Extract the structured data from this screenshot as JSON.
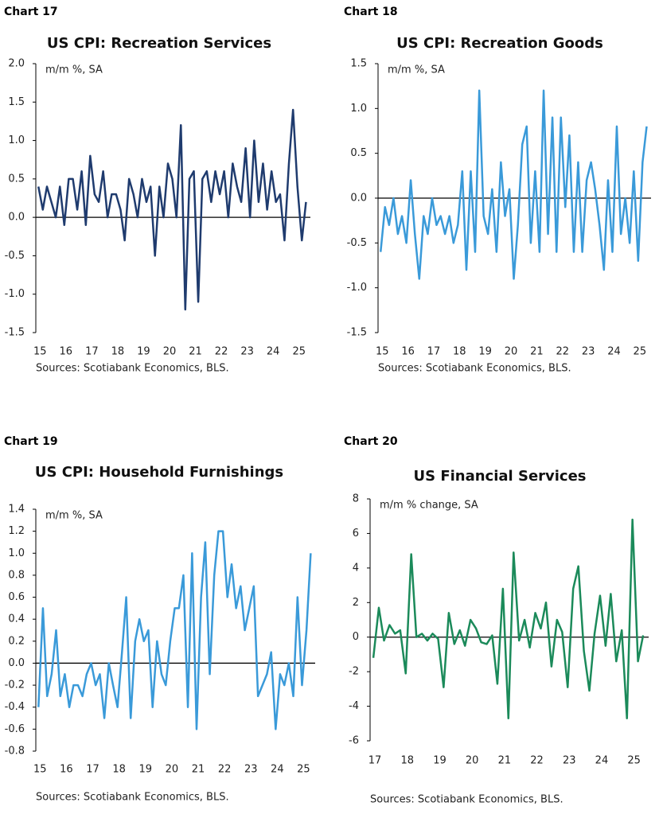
{
  "chart_data": [
    {
      "type": "line",
      "label": "Chart 17",
      "title": "US CPI: Recreation Services",
      "subtitle": "m/m %, SA",
      "source": "Sources: Scotiabank Economics, BLS.",
      "x": [
        15,
        15.17,
        15.33,
        15.5,
        15.67,
        15.83,
        16,
        16.17,
        16.33,
        16.5,
        16.67,
        16.83,
        17,
        17.17,
        17.33,
        17.5,
        17.67,
        17.83,
        18,
        18.17,
        18.33,
        18.5,
        18.67,
        18.83,
        19,
        19.17,
        19.33,
        19.5,
        19.67,
        19.83,
        20,
        20.17,
        20.33,
        20.5,
        20.67,
        20.83,
        21,
        21.17,
        21.33,
        21.5,
        21.67,
        21.83,
        22,
        22.17,
        22.33,
        22.5,
        22.67,
        22.83,
        23,
        23.17,
        23.33,
        23.5,
        23.67,
        23.83,
        24,
        24.17,
        24.33,
        24.5,
        24.67,
        24.83,
        25,
        25.17,
        25.33
      ],
      "values": [
        0.4,
        0.1,
        0.4,
        0.2,
        0.0,
        0.4,
        -0.1,
        0.5,
        0.5,
        0.1,
        0.6,
        -0.1,
        0.8,
        0.3,
        0.2,
        0.6,
        0.0,
        0.3,
        0.3,
        0.1,
        -0.3,
        0.5,
        0.3,
        0.0,
        0.5,
        0.2,
        0.4,
        -0.5,
        0.4,
        0.0,
        0.7,
        0.5,
        0.0,
        1.2,
        -1.2,
        0.5,
        0.6,
        -1.1,
        0.5,
        0.6,
        0.2,
        0.6,
        0.3,
        0.6,
        0.0,
        0.7,
        0.4,
        0.2,
        0.9,
        0.0,
        1.0,
        0.2,
        0.7,
        0.1,
        0.6,
        0.2,
        0.3,
        -0.3,
        0.7,
        1.4,
        0.4,
        -0.3,
        0.2
      ],
      "color": "#1f3b6e",
      "xlim": [
        14.9,
        25.5
      ],
      "xticks": [
        15,
        16,
        17,
        18,
        19,
        20,
        21,
        22,
        23,
        24,
        25
      ],
      "ylim": [
        -1.5,
        2.0
      ],
      "yticks": [
        {
          "value": 2.0,
          "label": "2.0"
        },
        1.5,
        {
          "value": 1.0,
          "label": "1.0"
        },
        0.5,
        {
          "value": 0.0,
          "label": "0.0"
        },
        -0.5,
        {
          "value": -1.0,
          "label": "-1.0"
        },
        -1.5
      ]
    },
    {
      "type": "line",
      "label": "Chart 18",
      "title": "US CPI: Recreation Goods",
      "subtitle": "m/m %, SA",
      "source": "Sources: Scotiabank Economics, BLS.",
      "x": [
        15,
        15.17,
        15.33,
        15.5,
        15.67,
        15.83,
        16,
        16.17,
        16.33,
        16.5,
        16.67,
        16.83,
        17,
        17.17,
        17.33,
        17.5,
        17.67,
        17.83,
        18,
        18.17,
        18.33,
        18.5,
        18.67,
        18.83,
        19,
        19.17,
        19.33,
        19.5,
        19.67,
        19.83,
        20,
        20.17,
        20.33,
        20.5,
        20.67,
        20.83,
        21,
        21.17,
        21.33,
        21.5,
        21.67,
        21.83,
        22,
        22.17,
        22.33,
        22.5,
        22.67,
        22.83,
        23,
        23.17,
        23.33,
        23.5,
        23.67,
        23.83,
        24,
        24.17,
        24.33,
        24.5,
        24.67,
        24.83,
        25,
        25.17,
        25.33
      ],
      "values": [
        -0.6,
        -0.1,
        -0.3,
        0.0,
        -0.4,
        -0.2,
        -0.5,
        0.2,
        -0.4,
        -0.9,
        -0.2,
        -0.4,
        0.0,
        -0.3,
        -0.2,
        -0.4,
        -0.2,
        -0.5,
        -0.3,
        0.3,
        -0.8,
        0.3,
        -0.6,
        1.2,
        -0.2,
        -0.4,
        0.1,
        -0.6,
        0.4,
        -0.2,
        0.1,
        -0.9,
        -0.3,
        0.6,
        0.8,
        -0.5,
        0.3,
        -0.6,
        1.2,
        -0.4,
        0.9,
        -0.6,
        0.9,
        -0.1,
        0.7,
        -0.6,
        0.4,
        -0.6,
        0.2,
        0.4,
        0.1,
        -0.3,
        -0.8,
        0.2,
        -0.6,
        0.8,
        -0.4,
        0.0,
        -0.5,
        0.3,
        -0.7,
        0.4,
        0.8
      ],
      "color": "#3a9ad9",
      "xlim": [
        14.9,
        25.5
      ],
      "xticks": [
        15,
        16,
        17,
        18,
        19,
        20,
        21,
        22,
        23,
        24,
        25
      ],
      "ylim": [
        -1.5,
        1.5
      ],
      "yticks": [
        1.5,
        {
          "value": 1.0,
          "label": "1.0"
        },
        0.5,
        {
          "value": 0.0,
          "label": "0.0"
        },
        -0.5,
        {
          "value": -1.0,
          "label": "-1.0"
        },
        -1.5
      ]
    },
    {
      "type": "line",
      "label": "Chart 19",
      "title": "US CPI: Household Furnishings",
      "subtitle": "m/m %, SA",
      "source": "Sources: Scotiabank Economics, BLS.",
      "x": [
        15,
        15.17,
        15.33,
        15.5,
        15.67,
        15.83,
        16,
        16.17,
        16.33,
        16.5,
        16.67,
        16.83,
        17,
        17.17,
        17.33,
        17.5,
        17.67,
        17.83,
        18,
        18.17,
        18.33,
        18.5,
        18.67,
        18.83,
        19,
        19.17,
        19.33,
        19.5,
        19.67,
        19.83,
        20,
        20.17,
        20.33,
        20.5,
        20.67,
        20.83,
        21,
        21.17,
        21.33,
        21.5,
        21.67,
        21.83,
        22,
        22.17,
        22.33,
        22.5,
        22.67,
        22.83,
        23,
        23.17,
        23.33,
        23.5,
        23.67,
        23.83,
        24,
        24.17,
        24.33,
        24.5,
        24.67,
        24.83,
        25,
        25.17,
        25.33
      ],
      "values": [
        -0.4,
        0.5,
        -0.3,
        -0.1,
        0.3,
        -0.3,
        -0.1,
        -0.4,
        -0.2,
        -0.2,
        -0.3,
        -0.1,
        0.0,
        -0.2,
        -0.1,
        -0.5,
        0.0,
        -0.2,
        -0.4,
        0.1,
        0.6,
        -0.5,
        0.2,
        0.4,
        0.2,
        0.3,
        -0.4,
        0.2,
        -0.1,
        -0.2,
        0.2,
        0.5,
        0.5,
        0.8,
        -0.4,
        1.0,
        -0.6,
        0.6,
        1.1,
        -0.1,
        0.8,
        1.2,
        1.2,
        0.6,
        0.9,
        0.5,
        0.7,
        0.3,
        0.5,
        0.7,
        -0.3,
        -0.2,
        -0.1,
        0.1,
        -0.6,
        -0.1,
        -0.2,
        0.0,
        -0.3,
        0.6,
        -0.2,
        0.3,
        1.0
      ],
      "color": "#3a9ad9",
      "xlim": [
        14.9,
        25.5
      ],
      "xticks": [
        15,
        16,
        17,
        18,
        19,
        20,
        21,
        22,
        23,
        24,
        25
      ],
      "ylim": [
        -0.8,
        1.4
      ],
      "yticks": [
        1.4,
        1.2,
        {
          "value": 1.0,
          "label": "1.0"
        },
        0.8,
        0.6,
        0.4,
        0.2,
        {
          "value": 0.0,
          "label": "0.0"
        },
        -0.2,
        -0.4,
        -0.6,
        -0.8
      ]
    },
    {
      "type": "line",
      "label": "Chart 20",
      "title": "US Financial Services",
      "subtitle": "m/m % change, SA",
      "source": "Sources: Scotiabank Economics, BLS.",
      "x": [
        17,
        17.17,
        17.33,
        17.5,
        17.67,
        17.83,
        18,
        18.17,
        18.33,
        18.5,
        18.67,
        18.83,
        19,
        19.17,
        19.33,
        19.5,
        19.67,
        19.83,
        20,
        20.17,
        20.33,
        20.5,
        20.67,
        20.83,
        21,
        21.17,
        21.33,
        21.5,
        21.67,
        21.83,
        22,
        22.17,
        22.33,
        22.5,
        22.67,
        22.83,
        23,
        23.17,
        23.33,
        23.5,
        23.67,
        23.83,
        24,
        24.17,
        24.33,
        24.5,
        24.67,
        24.83,
        25,
        25.17,
        25.33
      ],
      "values": [
        -1.2,
        1.7,
        -0.2,
        0.7,
        0.2,
        0.4,
        -2.1,
        4.8,
        0.0,
        0.2,
        -0.2,
        0.2,
        -0.1,
        -2.9,
        1.4,
        -0.4,
        0.4,
        -0.5,
        1.0,
        0.5,
        -0.3,
        -0.4,
        0.1,
        -2.7,
        2.8,
        -4.7,
        4.9,
        -0.2,
        1.0,
        -0.6,
        1.4,
        0.5,
        2.0,
        -1.7,
        1.0,
        0.3,
        -2.9,
        2.8,
        4.1,
        -0.8,
        -3.1,
        0.2,
        2.4,
        -0.5,
        2.5,
        -1.4,
        0.4,
        -4.7,
        6.8,
        -1.4,
        0.1
      ],
      "color": "#1b8a5a",
      "xlim": [
        16.9,
        25.5
      ],
      "xticks": [
        17,
        18,
        19,
        20,
        21,
        22,
        23,
        24,
        25
      ],
      "ylim": [
        -6,
        8
      ],
      "yticks": [
        8,
        6,
        4,
        2,
        0,
        -2,
        -4,
        -6
      ]
    }
  ]
}
